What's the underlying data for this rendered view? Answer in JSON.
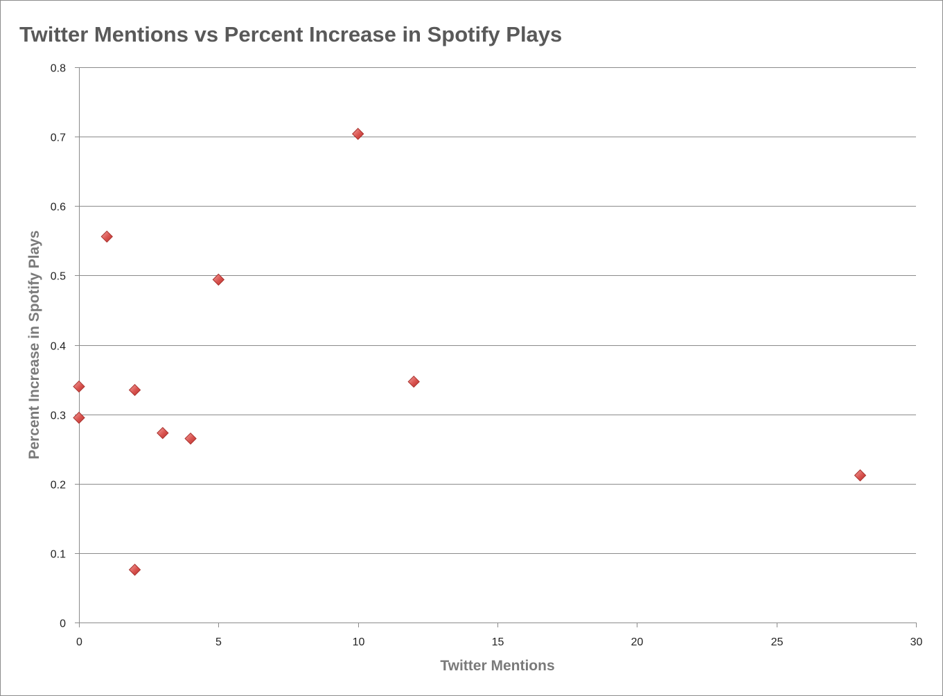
{
  "chart_data": {
    "type": "scatter",
    "title": "Twitter Mentions vs Percent Increase in Spotify Plays",
    "xlabel": "Twitter Mentions",
    "ylabel": "Percent Increase in Spotify Plays",
    "xlim": [
      0,
      30
    ],
    "ylim": [
      0,
      0.8
    ],
    "x_ticks": [
      "0",
      "5",
      "10",
      "15",
      "20",
      "25",
      "30"
    ],
    "y_ticks": [
      "0",
      "0.1",
      "0.2",
      "0.3",
      "0.4",
      "0.5",
      "0.6",
      "0.7",
      "0.8"
    ],
    "grid": "horizontal",
    "legend": "none",
    "marker": "diamond",
    "marker_color": "#d9534f",
    "points": [
      {
        "x": 0,
        "y": 0.34
      },
      {
        "x": 0,
        "y": 0.295
      },
      {
        "x": 1,
        "y": 0.556
      },
      {
        "x": 2,
        "y": 0.335
      },
      {
        "x": 2,
        "y": 0.076
      },
      {
        "x": 3,
        "y": 0.273
      },
      {
        "x": 4,
        "y": 0.265
      },
      {
        "x": 5,
        "y": 0.494
      },
      {
        "x": 10,
        "y": 0.704
      },
      {
        "x": 12,
        "y": 0.347
      },
      {
        "x": 28,
        "y": 0.212
      }
    ]
  }
}
